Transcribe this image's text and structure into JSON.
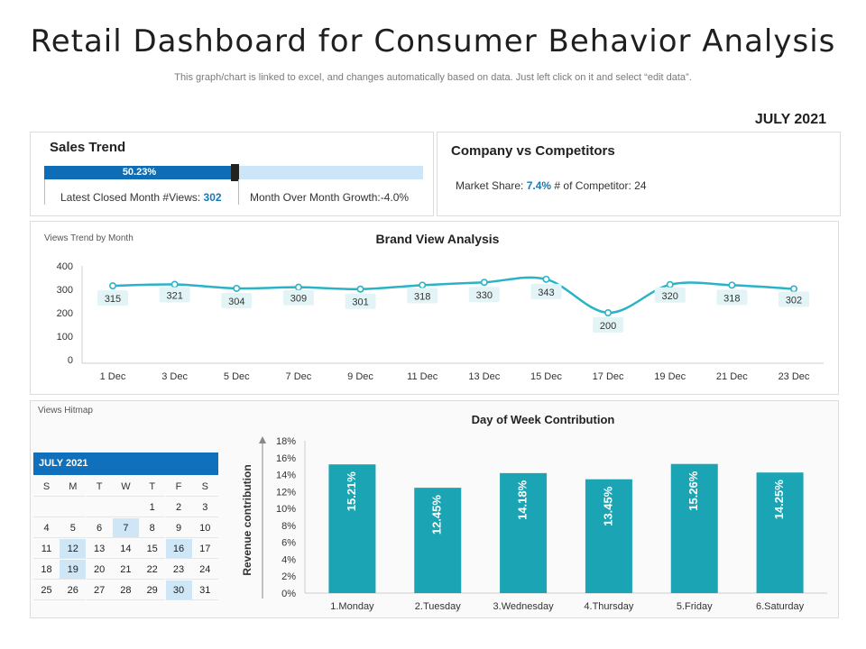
{
  "title": "Retail Dashboard for Consumer Behavior Analysis",
  "subtitle": "This graph/chart is linked to excel, and changes automatically based on data. Just left click on it and select “edit data”.",
  "month": "JULY 2021",
  "sales_trend": {
    "title": "Sales Trend",
    "progress_label": "50.23%",
    "progress_value": 0.5023,
    "views_label": "Latest Closed Month #Views:",
    "views_value": "302",
    "growth_label": "Month Over Month Growth:-4.0%"
  },
  "competitors": {
    "title": "Company vs Competitors",
    "share_label": "Market Share:",
    "share_value": "7.4%",
    "competitor_label": "# of Competitor:",
    "competitor_value": "24"
  },
  "brand_view": {
    "panel_label": "Views Trend by Month",
    "title": "Brand View Analysis"
  },
  "views_hitmap": {
    "panel_label": "Views Hitmap",
    "month": "JULY 2021",
    "days_of_week": [
      "S",
      "M",
      "T",
      "W",
      "T",
      "F",
      "S"
    ],
    "weeks": [
      [
        "",
        "",
        "",
        "",
        "1",
        "2",
        "3"
      ],
      [
        "4",
        "5",
        "6",
        "7",
        "8",
        "9",
        "10"
      ],
      [
        "11",
        "12",
        "13",
        "14",
        "15",
        "16",
        "17"
      ],
      [
        "18",
        "19",
        "20",
        "21",
        "22",
        "23",
        "24"
      ],
      [
        "25",
        "26",
        "27",
        "28",
        "29",
        "30",
        "31"
      ]
    ],
    "highlighted_days": [
      "7",
      "12",
      "16",
      "19",
      "30"
    ]
  },
  "chart_data": [
    {
      "type": "line",
      "title": "Brand View Analysis",
      "xlabel": "",
      "ylabel": "",
      "categories": [
        "1 Dec",
        "3 Dec",
        "5 Dec",
        "7 Dec",
        "9 Dec",
        "11 Dec",
        "13 Dec",
        "15 Dec",
        "17 Dec",
        "19 Dec",
        "21 Dec",
        "23 Dec"
      ],
      "values": [
        315,
        321,
        304,
        309,
        301,
        318,
        330,
        343,
        200,
        320,
        318,
        302
      ],
      "ylim": [
        0,
        400
      ],
      "yticks": [
        0,
        100,
        200,
        300,
        400
      ],
      "color": "#2ab3c6",
      "grid": false
    },
    {
      "type": "bar",
      "title": "Day of Week Contribution",
      "xlabel": "",
      "ylabel": "Revenue contribution",
      "categories": [
        "1.Monday",
        "2.Tuesday",
        "3.Wednesday",
        "4.Thursday",
        "5.Friday",
        "6.Saturday"
      ],
      "values": [
        15.21,
        12.45,
        14.18,
        13.45,
        15.26,
        14.25
      ],
      "value_labels": [
        "15.21%",
        "12.45%",
        "14.18%",
        "13.45%",
        "15.26%",
        "14.25%"
      ],
      "ylim": [
        0,
        18
      ],
      "ytick_labels": [
        "0%",
        "2%",
        "4%",
        "6%",
        "8%",
        "10%",
        "12%",
        "14%",
        "16%",
        "18%"
      ],
      "color": "#1aa4b4",
      "grid": false
    }
  ]
}
